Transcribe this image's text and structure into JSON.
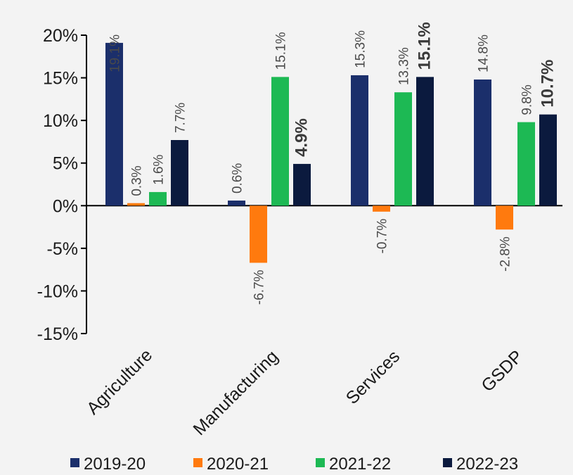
{
  "chart_data": {
    "type": "bar",
    "categories": [
      "Agriculture",
      "Manufacturing",
      "Services",
      "GSDP"
    ],
    "series": [
      {
        "name": "2019-20",
        "color": "#1b2f6b",
        "values": [
          19.1,
          0.6,
          15.3,
          14.8
        ],
        "labels": [
          "19.1%",
          "0.6%",
          "15.3%",
          "14.8%"
        ]
      },
      {
        "name": "2020-21",
        "color": "#ff7a0e",
        "values": [
          0.3,
          -6.7,
          -0.7,
          -2.8
        ],
        "labels": [
          "0.3%",
          "-6.7%",
          "-0.7%",
          "-2.8%"
        ]
      },
      {
        "name": "2021-22",
        "color": "#1db954",
        "values": [
          1.6,
          15.1,
          13.3,
          9.8
        ],
        "labels": [
          "1.6%",
          "15.1%",
          "13.3%",
          "9.8%"
        ]
      },
      {
        "name": "2022-23",
        "color": "#0b1a3e",
        "values": [
          7.7,
          4.9,
          15.1,
          10.7
        ],
        "labels": [
          "7.7%",
          "4.9%",
          "15.1%",
          "10.7%"
        ]
      }
    ],
    "ylim": [
      -15,
      20
    ],
    "yticks": [
      20,
      15,
      10,
      5,
      0,
      -5,
      -10,
      -15
    ],
    "ytick_labels": [
      "20%",
      "15%",
      "10%",
      "5%",
      "0%",
      "-5%",
      "-10%",
      "-15%"
    ],
    "grid": false,
    "legend_position": "bottom",
    "title": "",
    "xlabel": "",
    "ylabel": ""
  }
}
